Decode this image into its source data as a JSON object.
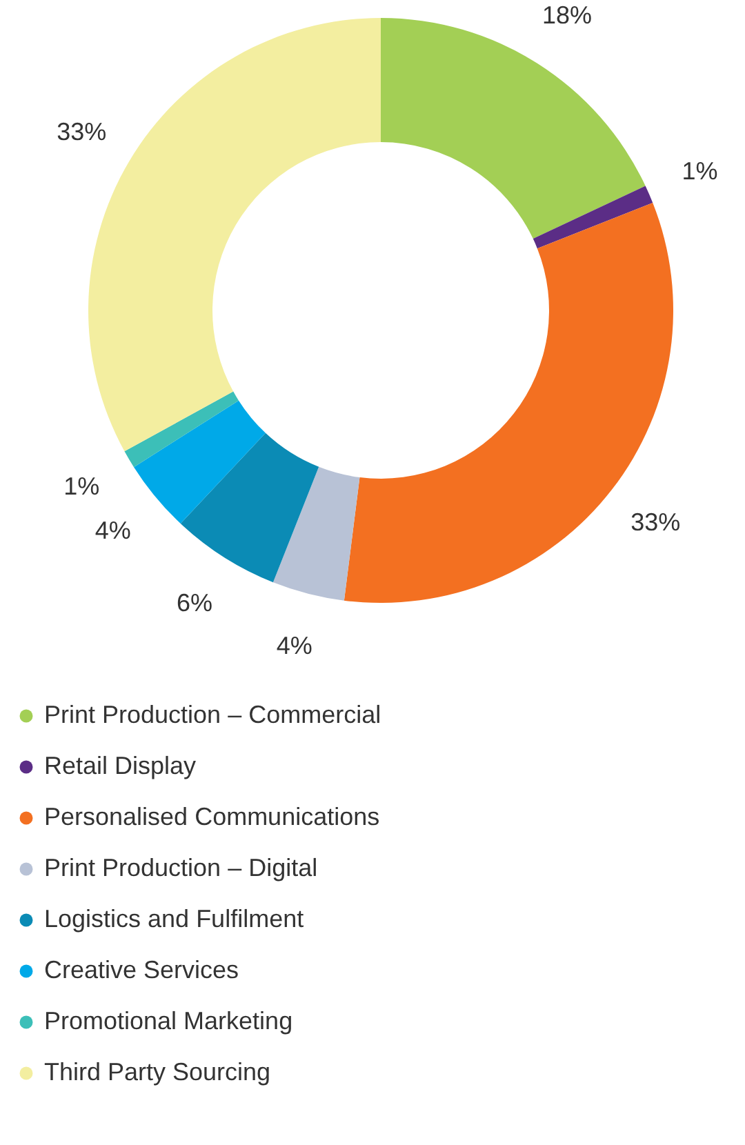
{
  "chart_data": {
    "type": "donut",
    "categories": [
      "Print Production – Commercial",
      "Retail Display",
      "Personalised Communications",
      "Print Production – Digital",
      "Logistics and Fulfilment",
      "Creative Services",
      "Promotional Marketing",
      "Third Party Sourcing"
    ],
    "values": [
      18,
      1,
      33,
      4,
      6,
      4,
      1,
      33
    ],
    "value_labels": [
      "18%",
      "1%",
      "33%",
      "4%",
      "6%",
      "4%",
      "1%",
      "33%"
    ],
    "colors": [
      "#a3cf55",
      "#5b2d86",
      "#f37021",
      "#b8c2d6",
      "#0b8bb5",
      "#00a9e8",
      "#3cbfb8",
      "#f3eea0"
    ],
    "legend": "bottom"
  }
}
